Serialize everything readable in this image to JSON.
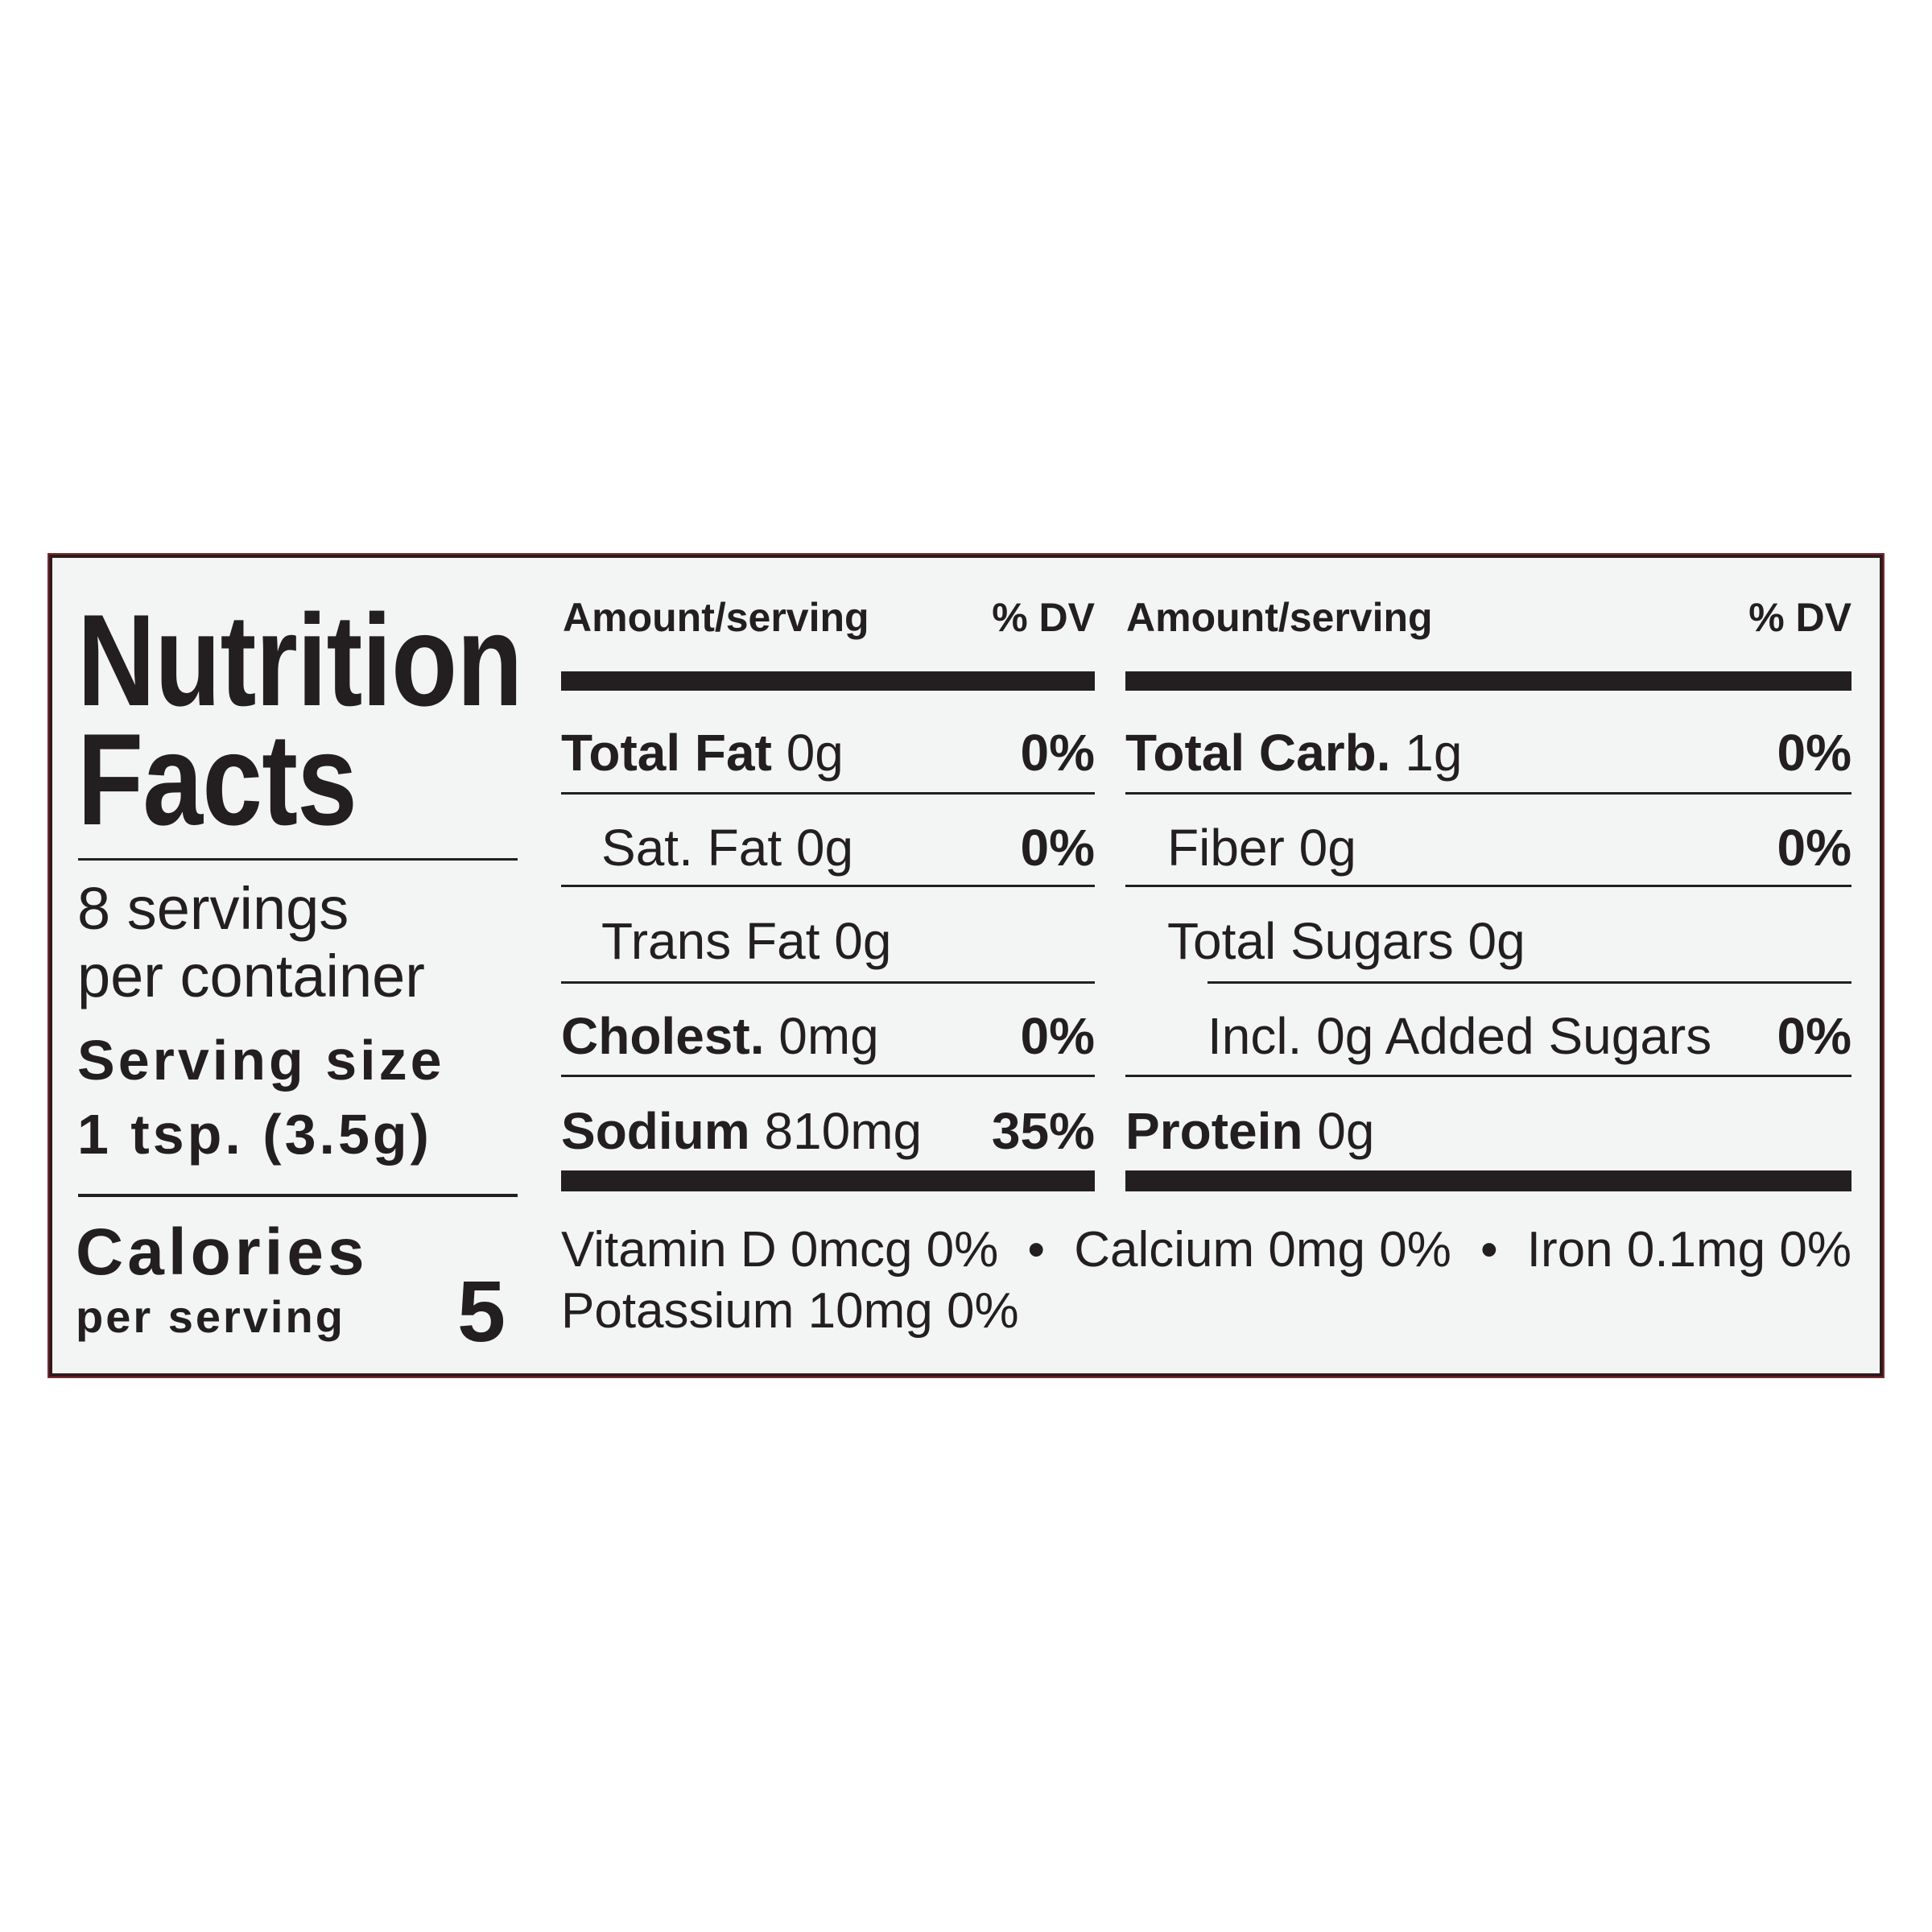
{
  "title_line1": "Nutrition",
  "title_line2": "Facts",
  "servings_line1": "8 servings",
  "servings_line2": "per container",
  "serving_size_label": "Serving size",
  "serving_size_value": "1 tsp. (3.5g)",
  "calories_label": "Calories",
  "calories_sub": "per serving",
  "calories_value": "5",
  "header": {
    "amount": "Amount/serving",
    "dv": "% DV"
  },
  "left_rows": [
    {
      "name": "Total Fat",
      "amount": "0g",
      "dv": "0%",
      "bold": true
    },
    {
      "name": "Sat. Fat",
      "amount": "0g",
      "dv": "0%",
      "bold": false
    },
    {
      "name": "Trans Fat",
      "amount": "0g",
      "dv": "",
      "bold": false
    },
    {
      "name": "Cholest.",
      "amount": "0mg",
      "dv": "0%",
      "bold": true
    },
    {
      "name": "Sodium",
      "amount": "810mg",
      "dv": "35%",
      "bold": true
    }
  ],
  "right_rows": [
    {
      "name": "Total Carb.",
      "amount": "1g",
      "dv": "0%",
      "bold": true
    },
    {
      "name": "Fiber",
      "amount": "0g",
      "dv": "0%",
      "bold": false
    },
    {
      "name": "Total Sugars",
      "amount": "0g",
      "dv": "",
      "bold": false
    },
    {
      "name": "Incl. 0g Added Sugars",
      "amount": "",
      "dv": "0%",
      "bold": false
    },
    {
      "name": "Protein",
      "amount": "0g",
      "dv": "",
      "bold": true
    }
  ],
  "vitamins": [
    "Vitamin D 0mcg 0%",
    "Calcium 0mg 0%",
    "Iron 0.1mg 0%",
    "Potassium 10mg 0%"
  ],
  "separator": "•",
  "colors": {
    "text": "#231f20",
    "background": "#f3f4f4",
    "border": "#2e1a1c"
  }
}
